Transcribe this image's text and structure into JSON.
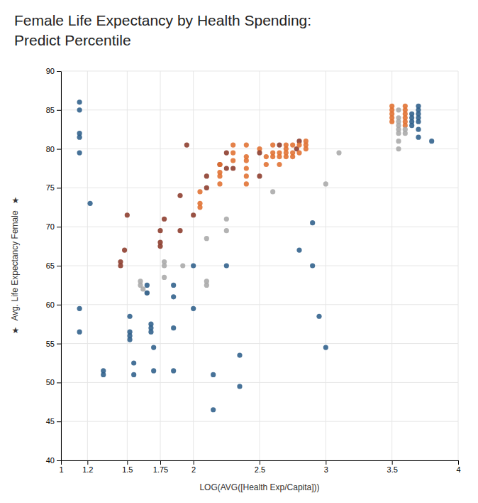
{
  "chart_data": {
    "type": "scatter",
    "title": "Female Life Expectancy by Health Spending:",
    "subtitle": "Predict Percentile",
    "x_label": "LOG(AVG([Health Exp/Capita]))",
    "y_label": "Avg. Life Expectancy Female",
    "annotations": [
      "★",
      "★"
    ],
    "xlim": [
      1,
      4
    ],
    "ylim": [
      40,
      90
    ],
    "xticks": [
      1,
      1.2,
      1.5,
      1.75,
      2,
      2.5,
      3,
      3.5,
      4
    ],
    "yticks": [
      40,
      45,
      50,
      55,
      60,
      65,
      70,
      75,
      80,
      85,
      90
    ],
    "grid": true,
    "x": [
      1.14,
      1.14,
      1.14,
      1.14,
      1.14,
      1.14,
      1.14,
      1.22,
      1.32,
      1.32,
      1.45,
      1.45,
      1.48,
      1.5,
      1.52,
      1.52,
      1.52,
      1.52,
      1.55,
      1.55,
      1.6,
      1.6,
      1.62,
      1.65,
      1.65,
      1.65,
      1.68,
      1.68,
      1.68,
      1.7,
      1.7,
      1.75,
      1.75,
      1.75,
      1.78,
      1.78,
      1.78,
      1.78,
      1.85,
      1.85,
      1.85,
      1.85,
      1.9,
      1.9,
      1.92,
      1.95,
      2,
      2,
      2,
      2.05,
      2.05,
      2.05,
      2.1,
      2.1,
      2.1,
      2.1,
      2.1,
      2.15,
      2.15,
      2.2,
      2.2,
      2.2,
      2.2,
      2.2,
      2.25,
      2.25,
      2.25,
      2.25,
      2.25,
      2.3,
      2.3,
      2.3,
      2.3,
      2.35,
      2.35,
      2.4,
      2.4,
      2.4,
      2.4,
      2.4,
      2.4,
      2.5,
      2.5,
      2.5,
      2.55,
      2.55,
      2.6,
      2.6,
      2.6,
      2.6,
      2.65,
      2.65,
      2.65,
      2.65,
      2.7,
      2.7,
      2.7,
      2.7,
      2.75,
      2.75,
      2.75,
      2.78,
      2.8,
      2.8,
      2.8,
      2.8,
      2.85,
      2.85,
      2.85,
      2.9,
      2.9,
      2.95,
      3,
      3,
      3.1,
      3.5,
      3.5,
      3.5,
      3.5,
      3.5,
      3.55,
      3.55,
      3.55,
      3.55,
      3.55,
      3.55,
      3.55,
      3.55,
      3.6,
      3.6,
      3.6,
      3.6,
      3.6,
      3.6,
      3.6,
      3.6,
      3.65,
      3.65,
      3.65,
      3.65,
      3.7,
      3.7,
      3.7,
      3.7,
      3.7,
      3.7,
      3.7,
      3.8
    ],
    "values": [
      86,
      85,
      82,
      81.5,
      79.5,
      59.5,
      56.5,
      73,
      51.5,
      51,
      65.5,
      65,
      67,
      71.5,
      58.5,
      56.5,
      56,
      55.5,
      52.5,
      51,
      63,
      62.5,
      62,
      61.5,
      62.5,
      61.5,
      57.5,
      57,
      56.5,
      54.5,
      51.5,
      69.5,
      68,
      67.5,
      71,
      65.5,
      65,
      63.5,
      62.5,
      61,
      57,
      51.5,
      74,
      69.5,
      65,
      80.5,
      71.5,
      65,
      59.5,
      74.5,
      73,
      72.5,
      76.5,
      75,
      68.5,
      63,
      62.5,
      51,
      46.5,
      78,
      78,
      77,
      76.5,
      75.5,
      79.5,
      77.5,
      71,
      69.5,
      65,
      80.5,
      79.5,
      78.5,
      77.5,
      53.5,
      49.5,
      80.5,
      79,
      78.5,
      77.5,
      76.5,
      75.5,
      80,
      79.5,
      76.5,
      79,
      78,
      80.5,
      79.5,
      79,
      74.5,
      80.5,
      79.5,
      79,
      78,
      80.5,
      80,
      79.5,
      79,
      80.5,
      79.5,
      79,
      80,
      81,
      80.5,
      79.5,
      67,
      81,
      80.5,
      80,
      70.5,
      65,
      58.5,
      75.5,
      54.5,
      79.5,
      85.5,
      85,
      84.5,
      84,
      83.5,
      85,
      84,
      83.5,
      83,
      82.5,
      82,
      81,
      80,
      85.5,
      85,
      84.5,
      84,
      83.5,
      83,
      82.5,
      82,
      84.5,
      84,
      83.5,
      83,
      85.5,
      85,
      84.5,
      84,
      83.5,
      82.5,
      81.5,
      81
    ],
    "colors": [
      "#2E5F8A",
      "#2E5F8A",
      "#2E5F8A",
      "#2E5F8A",
      "#2E5F8A",
      "#2E5F8A",
      "#2E5F8A",
      "#2E5F8A",
      "#2E5F8A",
      "#2E5F8A",
      "#8B3A2A",
      "#8B3A2A",
      "#8B3A2A",
      "#8B3A2A",
      "#2E5F8A",
      "#2E5F8A",
      "#2E5F8A",
      "#2E5F8A",
      "#2E5F8A",
      "#2E5F8A",
      "#A8A8A8",
      "#A8A8A8",
      "#A8A8A8",
      "#A8A8A8",
      "#2E5F8A",
      "#2E5F8A",
      "#2E5F8A",
      "#2E5F8A",
      "#2E5F8A",
      "#2E5F8A",
      "#2E5F8A",
      "#8B3A2A",
      "#8B3A2A",
      "#8B3A2A",
      "#8B3A2A",
      "#A8A8A8",
      "#A8A8A8",
      "#A8A8A8",
      "#2E5F8A",
      "#2E5F8A",
      "#2E5F8A",
      "#2E5F8A",
      "#8B3A2A",
      "#8B3A2A",
      "#A8A8A8",
      "#8B3A2A",
      "#8B3A2A",
      "#2E5F8A",
      "#2E5F8A",
      "#E07030",
      "#E07030",
      "#E07030",
      "#8B3A2A",
      "#8B3A2A",
      "#A8A8A8",
      "#A8A8A8",
      "#A8A8A8",
      "#2E5F8A",
      "#2E5F8A",
      "#8B3A2A",
      "#E07030",
      "#E07030",
      "#E07030",
      "#E07030",
      "#8B3A2A",
      "#8B3A2A",
      "#A8A8A8",
      "#A8A8A8",
      "#2E5F8A",
      "#E07030",
      "#E07030",
      "#E07030",
      "#8B3A2A",
      "#2E5F8A",
      "#2E5F8A",
      "#E07030",
      "#E07030",
      "#E07030",
      "#E07030",
      "#E07030",
      "#E07030",
      "#E07030",
      "#8B3A2A",
      "#8B3A2A",
      "#E07030",
      "#E07030",
      "#E07030",
      "#E07030",
      "#E07030",
      "#A8A8A8",
      "#8B3A2A",
      "#E07030",
      "#E07030",
      "#E07030",
      "#E07030",
      "#E07030",
      "#E07030",
      "#E07030",
      "#E07030",
      "#E07030",
      "#E07030",
      "#8B3A2A",
      "#8B3A2A",
      "#E07030",
      "#E07030",
      "#2E5F8A",
      "#E07030",
      "#E07030",
      "#E07030",
      "#2E5F8A",
      "#2E5F8A",
      "#2E5F8A",
      "#A8A8A8",
      "#2E5F8A",
      "#A8A8A8",
      "#E07030",
      "#E07030",
      "#E07030",
      "#E07030",
      "#E07030",
      "#A8A8A8",
      "#A8A8A8",
      "#A8A8A8",
      "#A8A8A8",
      "#A8A8A8",
      "#A8A8A8",
      "#A8A8A8",
      "#A8A8A8",
      "#E07030",
      "#E07030",
      "#E07030",
      "#E07030",
      "#E07030",
      "#E07030",
      "#A8A8A8",
      "#A8A8A8",
      "#2E5F8A",
      "#2E5F8A",
      "#2E5F8A",
      "#2E5F8A",
      "#2E5F8A",
      "#2E5F8A",
      "#2E5F8A",
      "#2E5F8A",
      "#2E5F8A",
      "#2E5F8A",
      "#2E5F8A",
      "#2E5F8A"
    ]
  }
}
